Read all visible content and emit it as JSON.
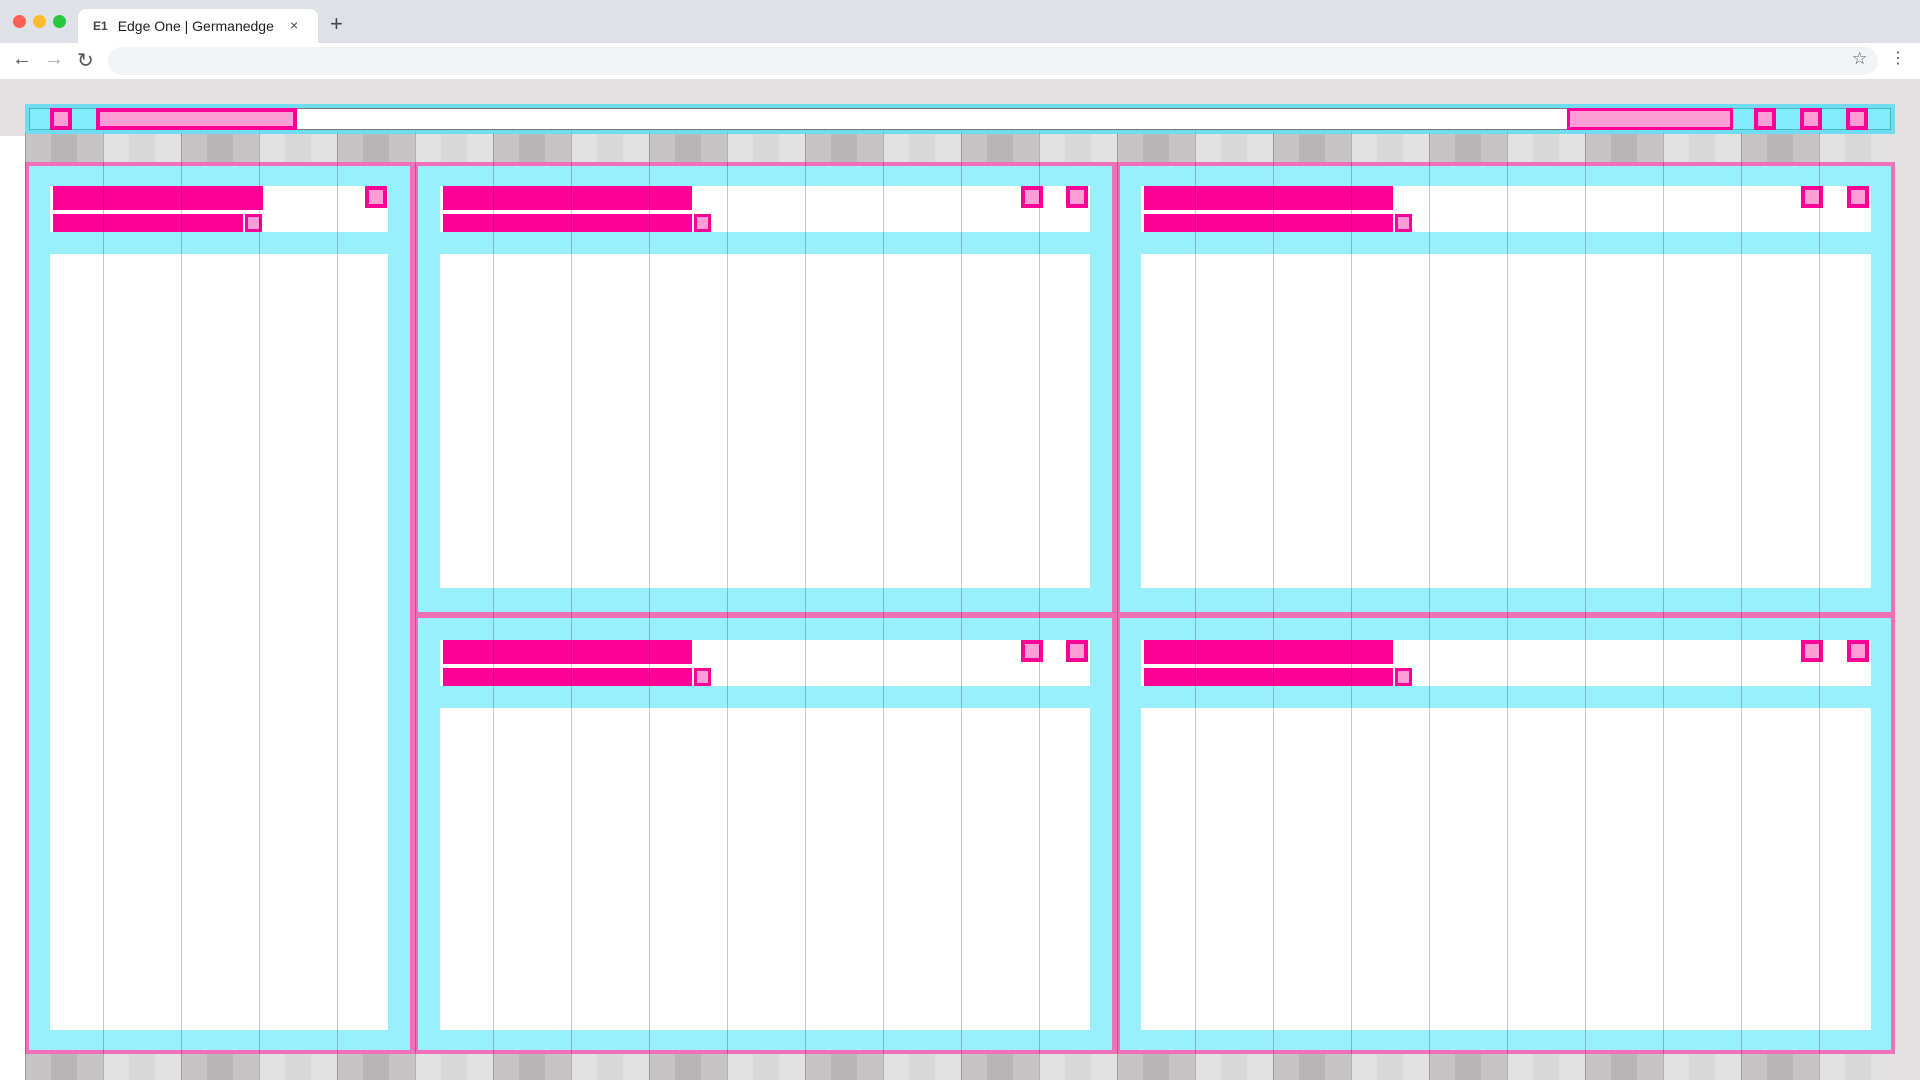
{
  "browser": {
    "tab": {
      "favicon_text": "E1",
      "title": "Edge One | Germanedge",
      "close_icon": "×"
    },
    "new_tab_icon": "+",
    "back_icon": "←",
    "forward_icon": "→",
    "reload_icon": "↻",
    "bookmark_icon": "☆",
    "menu_icon": "⋮",
    "address": ""
  },
  "colors": {
    "panel": "#99f0fd",
    "panel_border": "#f070b8",
    "placeholder": "#ff0096",
    "placeholder_fill": "#fd9ed6",
    "appbar": "#6fdcf0"
  }
}
